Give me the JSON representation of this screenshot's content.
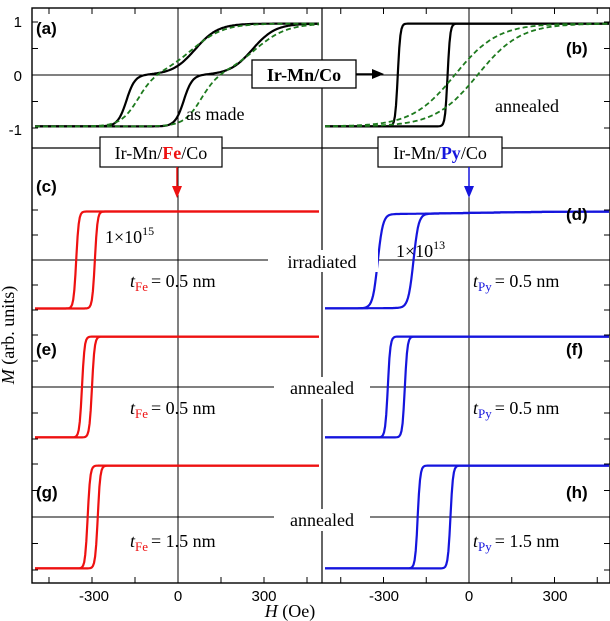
{
  "colors": {
    "black": "#000000",
    "green": "#1e7a1e",
    "fe": "#ee1111",
    "py": "#1515dd"
  },
  "axes": {
    "xlabel_var": "H",
    "xlabel_unit": " (Oe)",
    "ylabel_var": "M",
    "ylabel_unit": " (arb. units)",
    "xticks": [
      "-300",
      "0",
      "300",
      "-300",
      "0",
      "300"
    ],
    "yticks_top": [
      "1",
      "0",
      "-1"
    ]
  },
  "labels": {
    "a": "(a)",
    "b": "(b)",
    "c": "(c)",
    "d": "(d)",
    "e": "(e)",
    "f": "(f)",
    "g": "(g)",
    "h": "(h)"
  },
  "annotations": {
    "as_made": "as made",
    "annealed_b": "annealed",
    "ir_mn_co": "Ir-Mn/Co",
    "box_fe_pre": "Ir-Mn/",
    "box_fe_mid": "Fe",
    "box_fe_post": "/Co",
    "box_py_pre": "Ir-Mn/",
    "box_py_mid": "Py",
    "box_py_post": "/Co",
    "dose_fe_base": "1×10",
    "dose_fe_exp": "15",
    "dose_py_base": "1×10",
    "dose_py_exp": "13",
    "irradiated": "irradiated",
    "annealed_ef": "annealed",
    "annealed_gh": "annealed",
    "t": "t",
    "sub_fe": "Fe",
    "sub_py": "Py",
    "t_c": "= 0.5 nm",
    "t_d": "= 0.5 nm",
    "t_e": "= 0.5 nm",
    "t_f": "= 0.5 nm",
    "t_g": "= 1.5 nm",
    "t_h": "= 1.5 nm"
  },
  "chart_data": [
    {
      "panel": "a",
      "type": "line",
      "ylim": [
        -1,
        1
      ],
      "series": [
        {
          "color": "#000000",
          "style": "solid",
          "kind": "ia_loop",
          "hc": -180,
          "hc2": 20,
          "hsat": 1
        },
        {
          "color": "#1e7a1e",
          "style": "dashed",
          "kind": "ia_loop_soft",
          "hc": -140,
          "hc2": 80
        }
      ],
      "note": "as made"
    },
    {
      "panel": "b",
      "type": "line",
      "ylim": [
        -1,
        1
      ],
      "series": [
        {
          "color": "#000000",
          "style": "solid",
          "kind": "square",
          "hc": -250,
          "hc2": -75
        },
        {
          "color": "#1e7a1e",
          "style": "dashed",
          "kind": "soft",
          "hc": -50,
          "hc2": 30
        }
      ],
      "note": "annealed"
    },
    {
      "panel": "c",
      "type": "line",
      "series": [
        {
          "color": "#ee1111",
          "kind": "square",
          "hc": -355,
          "hc2": -290
        }
      ],
      "t": "0.5 nm",
      "state": "irradiated"
    },
    {
      "panel": "d",
      "type": "line",
      "series": [
        {
          "color": "#1515dd",
          "kind": "rounded",
          "hc": -320,
          "hc2": -195
        }
      ],
      "t": "0.5 nm",
      "state": "irradiated"
    },
    {
      "panel": "e",
      "type": "line",
      "series": [
        {
          "color": "#ee1111",
          "kind": "square",
          "hc": -335,
          "hc2": -300
        }
      ],
      "t": "0.5 nm",
      "state": "annealed"
    },
    {
      "panel": "f",
      "type": "line",
      "series": [
        {
          "color": "#1515dd",
          "kind": "square",
          "hc": -285,
          "hc2": -225
        }
      ],
      "t": "0.5 nm",
      "state": "annealed"
    },
    {
      "panel": "g",
      "type": "line",
      "series": [
        {
          "color": "#ee1111",
          "kind": "square",
          "hc": -315,
          "hc2": -280
        }
      ],
      "t": "1.5 nm",
      "state": "annealed"
    },
    {
      "panel": "h",
      "type": "line",
      "series": [
        {
          "color": "#1515dd",
          "kind": "square",
          "hc": -180,
          "hc2": -65
        }
      ],
      "t": "1.5 nm",
      "state": "annealed"
    }
  ]
}
